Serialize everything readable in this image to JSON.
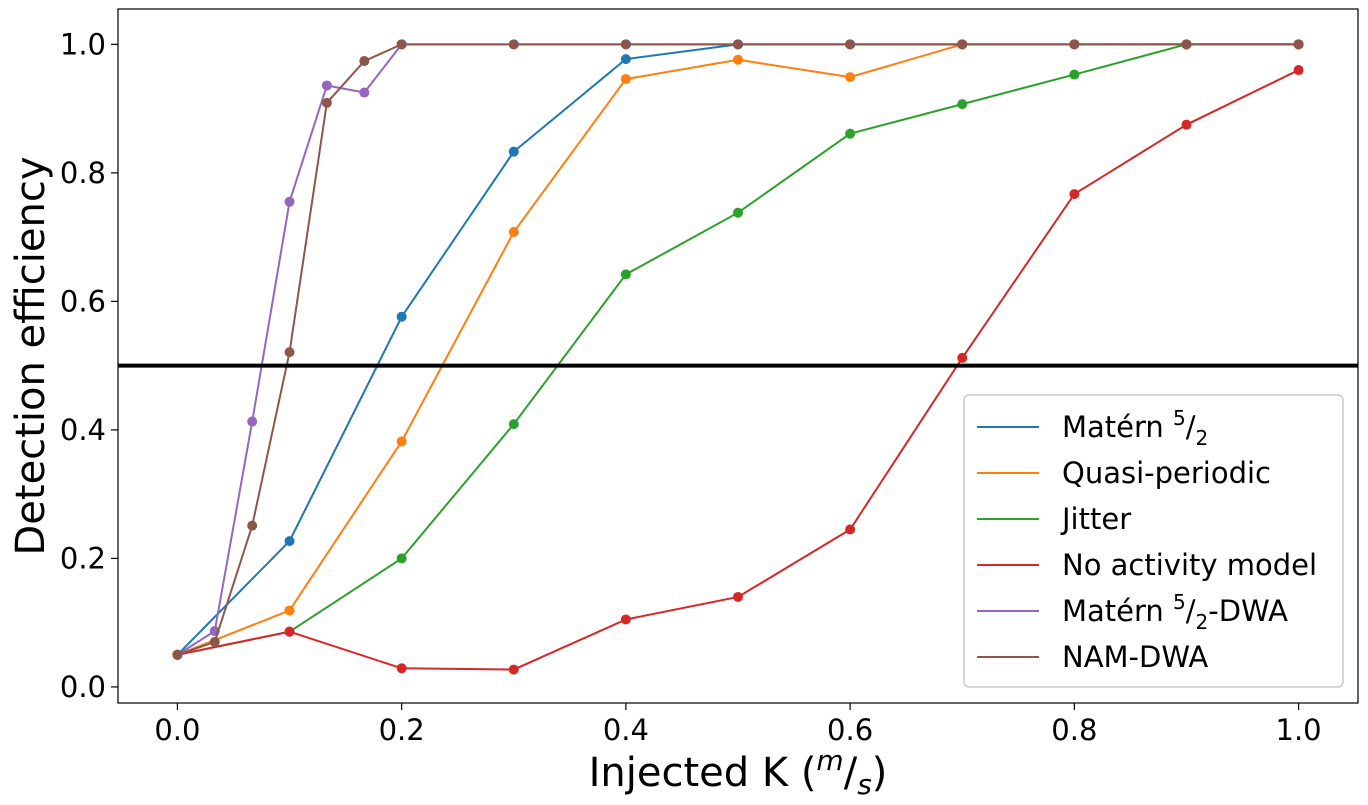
{
  "chart_data": {
    "type": "line",
    "xlabel": "Injected K (",
    "xlabel_unit_num": "m",
    "xlabel_unit_den": "s",
    "xlabel_close": ")",
    "ylabel": "Detection efficiency",
    "xlim": [
      -0.053,
      1.053
    ],
    "ylim": [
      -0.025,
      1.055
    ],
    "xticks": [
      0.0,
      0.2,
      0.4,
      0.6,
      0.8,
      1.0
    ],
    "xtick_labels": [
      "0.0",
      "0.2",
      "0.4",
      "0.6",
      "0.8",
      "1.0"
    ],
    "yticks": [
      0.0,
      0.2,
      0.4,
      0.6,
      0.8,
      1.0
    ],
    "ytick_labels": [
      "0.0",
      "0.2",
      "0.4",
      "0.6",
      "0.8",
      "1.0"
    ],
    "hline": 0.5,
    "legend_position": "lower-right",
    "series": [
      {
        "name": "Matérn 5/2",
        "label_pre": "Matérn ",
        "label_sup": "5",
        "label_den": "2",
        "label_post": "",
        "color": "#1f77b4",
        "x": [
          0.0,
          0.1,
          0.2,
          0.3,
          0.4,
          0.5,
          0.6,
          0.7,
          0.8,
          0.9,
          1.0
        ],
        "y": [
          0.05,
          0.227,
          0.576,
          0.833,
          0.977,
          1.0,
          1.0,
          1.0,
          1.0,
          1.0,
          1.0
        ]
      },
      {
        "name": "Quasi-periodic",
        "label_pre": "Quasi-periodic",
        "label_sup": "",
        "label_den": "",
        "label_post": "",
        "color": "#ff7f0e",
        "x": [
          0.0,
          0.1,
          0.2,
          0.3,
          0.4,
          0.5,
          0.6,
          0.7,
          0.8,
          0.9,
          1.0
        ],
        "y": [
          0.05,
          0.119,
          0.382,
          0.708,
          0.946,
          0.976,
          0.949,
          1.0,
          1.0,
          1.0,
          1.0
        ]
      },
      {
        "name": "Jitter",
        "label_pre": "Jitter",
        "label_sup": "",
        "label_den": "",
        "label_post": "",
        "color": "#2ca02c",
        "x": [
          0.0,
          0.1,
          0.2,
          0.3,
          0.4,
          0.5,
          0.6,
          0.7,
          0.8,
          0.9,
          1.0
        ],
        "y": [
          0.05,
          0.086,
          0.2,
          0.409,
          0.642,
          0.738,
          0.861,
          0.907,
          0.953,
          1.0,
          1.0
        ]
      },
      {
        "name": "No activity model",
        "label_pre": "No activity model",
        "label_sup": "",
        "label_den": "",
        "label_post": "",
        "color": "#d62728",
        "x": [
          0.0,
          0.1,
          0.2,
          0.3,
          0.4,
          0.5,
          0.6,
          0.7,
          0.8,
          0.9,
          1.0
        ],
        "y": [
          0.05,
          0.086,
          0.029,
          0.027,
          0.105,
          0.14,
          0.245,
          0.512,
          0.767,
          0.875,
          0.96
        ]
      },
      {
        "name": "Matérn 5/2-DWA",
        "label_pre": "Matérn ",
        "label_sup": "5",
        "label_den": "2",
        "label_post": "-DWA",
        "color": "#9467bd",
        "x": [
          0.0,
          0.0333,
          0.0667,
          0.1,
          0.1333,
          0.1667,
          0.2,
          0.3,
          0.4,
          0.5,
          0.6,
          0.7,
          0.8,
          0.9,
          1.0
        ],
        "y": [
          0.05,
          0.087,
          0.413,
          0.755,
          0.936,
          0.925,
          1.0,
          1.0,
          1.0,
          1.0,
          1.0,
          1.0,
          1.0,
          1.0,
          1.0
        ]
      },
      {
        "name": "NAM-DWA",
        "label_pre": "NAM-DWA",
        "label_sup": "",
        "label_den": "",
        "label_post": "",
        "color": "#8c564b",
        "x": [
          0.0,
          0.0333,
          0.0667,
          0.1,
          0.1333,
          0.1667,
          0.2,
          0.3,
          0.4,
          0.5,
          0.6,
          0.7,
          0.8,
          0.9,
          1.0
        ],
        "y": [
          0.05,
          0.07,
          0.251,
          0.521,
          0.909,
          0.974,
          1.0,
          1.0,
          1.0,
          1.0,
          1.0,
          1.0,
          1.0,
          1.0,
          1.0
        ]
      }
    ]
  }
}
